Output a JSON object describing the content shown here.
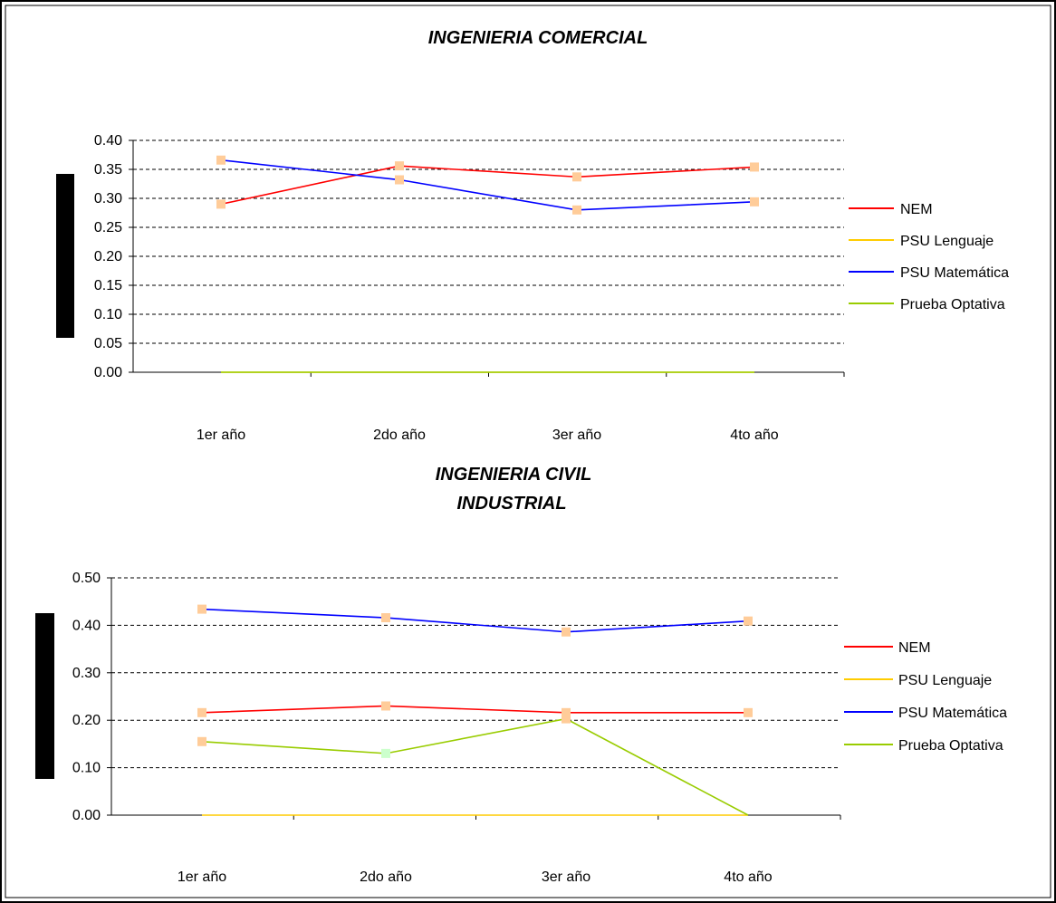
{
  "chart_data": [
    {
      "type": "line",
      "title": "INGENIERIA COMERCIAL",
      "categories": [
        "1er año",
        "2do año",
        "3er año",
        "4to año"
      ],
      "ylim": [
        0,
        0.4
      ],
      "yticks": [
        "0.00",
        "0.05",
        "0.10",
        "0.15",
        "0.20",
        "0.25",
        "0.30",
        "0.35",
        "0.40"
      ],
      "ytick_values": [
        0,
        0.05,
        0.1,
        0.15,
        0.2,
        0.25,
        0.3,
        0.35,
        0.4
      ],
      "grid": true,
      "legend_position": "right",
      "series": [
        {
          "name": "NEM",
          "color": "#ff0000",
          "values": [
            0.29,
            0.356,
            0.337,
            0.354
          ]
        },
        {
          "name": "PSU Lenguaje",
          "color": "#ffcc00",
          "values": [
            0,
            0,
            0,
            0
          ]
        },
        {
          "name": "PSU Matemática",
          "color": "#0000ff",
          "values": [
            0.366,
            0.332,
            0.28,
            0.294
          ]
        },
        {
          "name": "Prueba Optativa",
          "color": "#99cc00",
          "values": [
            0,
            0,
            0,
            0
          ]
        }
      ]
    },
    {
      "type": "line",
      "title": "INGENIERIA CIVIL INDUSTRIAL",
      "title_lines": [
        "INGENIERIA CIVIL",
        "INDUSTRIAL"
      ],
      "categories": [
        "1er año",
        "2do año",
        "3er año",
        "4to año"
      ],
      "ylim": [
        0,
        0.5
      ],
      "yticks": [
        "0.00",
        "0.10",
        "0.20",
        "0.30",
        "0.40",
        "0.50"
      ],
      "ytick_values": [
        0,
        0.1,
        0.2,
        0.3,
        0.4,
        0.5
      ],
      "grid": true,
      "legend_position": "right",
      "series": [
        {
          "name": "NEM",
          "color": "#ff0000",
          "values": [
            0.216,
            0.23,
            0.216,
            0.216
          ]
        },
        {
          "name": "PSU Lenguaje",
          "color": "#ffcc00",
          "values": [
            0,
            0,
            0,
            0
          ]
        },
        {
          "name": "PSU Matemática",
          "color": "#0000ff",
          "values": [
            0.434,
            0.416,
            0.386,
            0.409
          ]
        },
        {
          "name": "Prueba Optativa",
          "color": "#99cc00",
          "values": [
            0.155,
            0.13,
            0.203,
            0
          ]
        }
      ]
    }
  ],
  "colors": {
    "marker": "#ffcc99",
    "marker_highlight": "#ccffcc",
    "frame": "#000000"
  }
}
